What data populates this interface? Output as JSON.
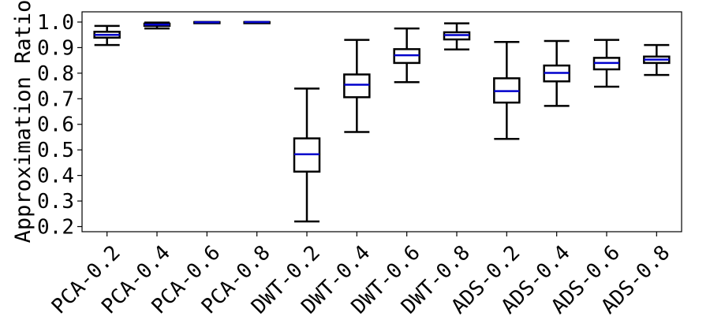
{
  "chart_data": {
    "type": "box",
    "title": "",
    "xlabel": "",
    "ylabel": "Approximation Ratio",
    "ylim": [
      0.18,
      1.04
    ],
    "yticks": [
      "0.2",
      "0.3",
      "0.4",
      "0.5",
      "0.6",
      "0.7",
      "0.8",
      "0.9",
      "1.0"
    ],
    "grid": false,
    "legend": "none",
    "colors": {
      "box": "#000000",
      "median": "#0000cc"
    },
    "categories": [
      "PCA-0.2",
      "PCA-0.4",
      "PCA-0.6",
      "PCA-0.8",
      "DWT-0.2",
      "DWT-0.4",
      "DWT-0.6",
      "DWT-0.8",
      "ADS-0.2",
      "ADS-0.4",
      "ADS-0.6",
      "ADS-0.8"
    ],
    "boxes": [
      {
        "whisker_low": 0.91,
        "q1": 0.939,
        "median": 0.95,
        "q3": 0.962,
        "whisker_high": 0.985
      },
      {
        "whisker_low": 0.975,
        "q1": 0.985,
        "median": 0.99,
        "q3": 0.994,
        "whisker_high": 0.998
      },
      {
        "whisker_low": 0.997,
        "q1": 0.998,
        "median": 0.999,
        "q3": 1.0,
        "whisker_high": 1.0
      },
      {
        "whisker_low": 0.999,
        "q1": 0.9995,
        "median": 1.0,
        "q3": 1.0,
        "whisker_high": 1.0
      },
      {
        "whisker_low": 0.22,
        "q1": 0.415,
        "median": 0.483,
        "q3": 0.545,
        "whisker_high": 0.74
      },
      {
        "whisker_low": 0.57,
        "q1": 0.706,
        "median": 0.755,
        "q3": 0.795,
        "whisker_high": 0.93
      },
      {
        "whisker_low": 0.765,
        "q1": 0.84,
        "median": 0.87,
        "q3": 0.894,
        "whisker_high": 0.975
      },
      {
        "whisker_low": 0.893,
        "q1": 0.932,
        "median": 0.949,
        "q3": 0.96,
        "whisker_high": 0.995
      },
      {
        "whisker_low": 0.543,
        "q1": 0.685,
        "median": 0.73,
        "q3": 0.78,
        "whisker_high": 0.922
      },
      {
        "whisker_low": 0.672,
        "q1": 0.768,
        "median": 0.801,
        "q3": 0.83,
        "whisker_high": 0.926
      },
      {
        "whisker_low": 0.747,
        "q1": 0.815,
        "median": 0.84,
        "q3": 0.86,
        "whisker_high": 0.93
      },
      {
        "whisker_low": 0.793,
        "q1": 0.84,
        "median": 0.853,
        "q3": 0.865,
        "whisker_high": 0.91
      }
    ]
  }
}
